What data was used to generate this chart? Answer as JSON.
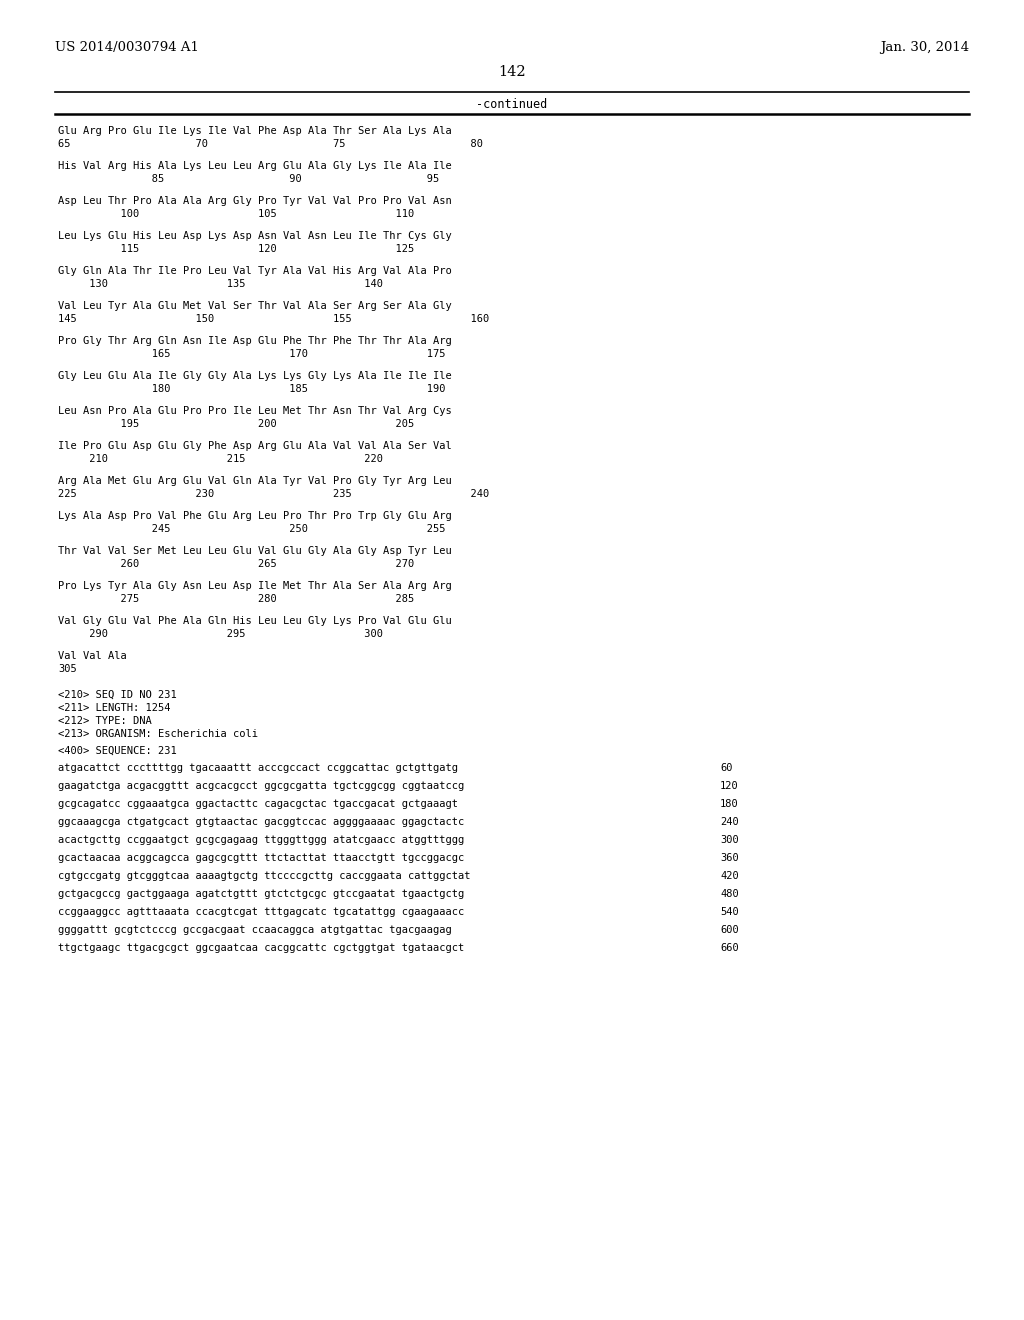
{
  "header_left": "US 2014/0030794 A1",
  "header_right": "Jan. 30, 2014",
  "page_number": "142",
  "continued_label": "-continued",
  "background_color": "#ffffff",
  "text_color": "#000000",
  "mono_font_size": 7.5,
  "header_font_size": 9.5,
  "page_num_font_size": 10.5,
  "protein_blocks": [
    {
      "seq": "Glu Arg Pro Glu Ile Lys Ile Val Phe Asp Ala Thr Ser Ala Lys Ala",
      "num": "65                    70                    75                    80"
    },
    {
      "seq": "His Val Arg His Ala Lys Leu Leu Arg Glu Ala Gly Lys Ile Ala Ile",
      "num": "               85                    90                    95"
    },
    {
      "seq": "Asp Leu Thr Pro Ala Ala Arg Gly Pro Tyr Val Val Pro Pro Val Asn",
      "num": "          100                   105                   110"
    },
    {
      "seq": "Leu Lys Glu His Leu Asp Lys Asp Asn Val Asn Leu Ile Thr Cys Gly",
      "num": "          115                   120                   125"
    },
    {
      "seq": "Gly Gln Ala Thr Ile Pro Leu Val Tyr Ala Val His Arg Val Ala Pro",
      "num": "     130                   135                   140"
    },
    {
      "seq": "Val Leu Tyr Ala Glu Met Val Ser Thr Val Ala Ser Arg Ser Ala Gly",
      "num": "145                   150                   155                   160"
    },
    {
      "seq": "Pro Gly Thr Arg Gln Asn Ile Asp Glu Phe Thr Phe Thr Thr Ala Arg",
      "num": "               165                   170                   175"
    },
    {
      "seq": "Gly Leu Glu Ala Ile Gly Gly Ala Lys Lys Gly Lys Ala Ile Ile Ile",
      "num": "               180                   185                   190"
    },
    {
      "seq": "Leu Asn Pro Ala Glu Pro Pro Ile Leu Met Thr Asn Thr Val Arg Cys",
      "num": "          195                   200                   205"
    },
    {
      "seq": "Ile Pro Glu Asp Glu Gly Phe Asp Arg Glu Ala Val Val Ala Ser Val",
      "num": "     210                   215                   220"
    },
    {
      "seq": "Arg Ala Met Glu Arg Glu Val Gln Ala Tyr Val Pro Gly Tyr Arg Leu",
      "num": "225                   230                   235                   240"
    },
    {
      "seq": "Lys Ala Asp Pro Val Phe Glu Arg Leu Pro Thr Pro Trp Gly Glu Arg",
      "num": "               245                   250                   255"
    },
    {
      "seq": "Thr Val Val Ser Met Leu Leu Glu Val Glu Gly Ala Gly Asp Tyr Leu",
      "num": "          260                   265                   270"
    },
    {
      "seq": "Pro Lys Tyr Ala Gly Asn Leu Asp Ile Met Thr Ala Ser Ala Arg Arg",
      "num": "          275                   280                   285"
    },
    {
      "seq": "Val Gly Glu Val Phe Ala Gln His Leu Leu Gly Lys Pro Val Glu Glu",
      "num": "     290                   295                   300"
    },
    {
      "seq": "Val Val Ala",
      "num": "305"
    }
  ],
  "seq_info_lines": [
    "<210> SEQ ID NO 231",
    "<211> LENGTH: 1254",
    "<212> TYPE: DNA",
    "<213> ORGANISM: Escherichia coli"
  ],
  "seq400_label": "<400> SEQUENCE: 231",
  "dna_lines": [
    [
      "atgacattct cccttttgg tgacaaattt acccgccact ccggcattac gctgttgatg",
      "60"
    ],
    [
      "gaagatctga acgacggttt acgcacgcct ggcgcgatta tgctcggcgg cggtaatccg",
      "120"
    ],
    [
      "gcgcagatcc cggaaatgca ggactacttc cagacgctac tgaccgacat gctgaaagt",
      "180"
    ],
    [
      "ggcaaagcga ctgatgcact gtgtaactac gacggtccac aggggaaaac ggagctactc",
      "240"
    ],
    [
      "acactgcttg ccggaatgct gcgcgagaag ttgggttggg atatcgaacc atggtttggg",
      "300"
    ],
    [
      "gcactaacaa acggcagcca gagcgcgttt ttctacttat ttaacctgtt tgccggacgc",
      "360"
    ],
    [
      "cgtgccgatg gtcgggtcaa aaaagtgctg ttccccgcttg caccggaata cattggctat",
      "420"
    ],
    [
      "gctgacgccg gactggaaga agatctgttt gtctctgcgc gtccgaatat tgaactgctg",
      "480"
    ],
    [
      "ccggaaggcc agtttaaata ccacgtcgat tttgagcatc tgcatattgg cgaagaaacc",
      "540"
    ],
    [
      "ggggattt gcgtctcccg gccgacgaat ccaacaggca atgtgattac tgacgaagag",
      "600"
    ],
    [
      "ttgctgaagc ttgacgcgct ggcgaatcaa cacggcattc cgctggtgat tgataacgct",
      "660"
    ]
  ]
}
